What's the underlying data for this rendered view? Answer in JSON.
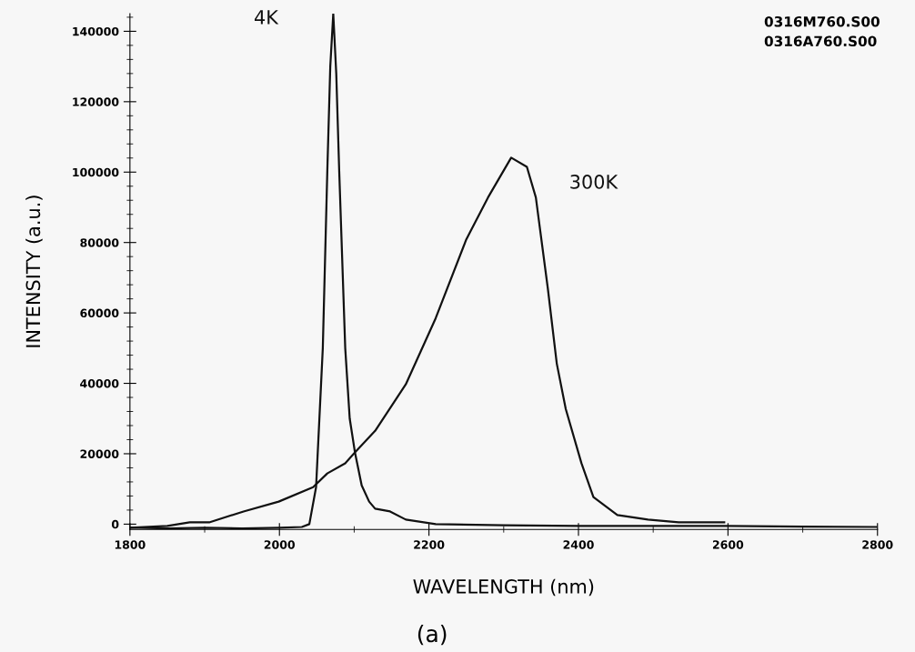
{
  "chart_data": {
    "type": "line",
    "xlabel": "WAVELENGTH (nm)",
    "ylabel": "INTENSITY (a.u.)",
    "annotations": [
      "0316M760.S00",
      "0316A760.S00",
      "(a)"
    ],
    "xlim": [
      1800,
      2800
    ],
    "xticks": [
      1800,
      2000,
      2200,
      2400,
      2600,
      2800
    ],
    "ylim": [
      -1500,
      145000
    ],
    "yticks": [
      0,
      20000,
      40000,
      60000,
      80000,
      100000,
      120000,
      140000
    ],
    "grid": false,
    "legend": false,
    "marker": "none",
    "line_style": "solid",
    "series": [
      {
        "name": "4K",
        "color": "#111111",
        "x": [
          1800,
          1850,
          1900,
          1950,
          2000,
          2030,
          2040,
          2049,
          2058,
          2064,
          2068,
          2072,
          2076,
          2080,
          2088,
          2094,
          2101,
          2110,
          2120,
          2128,
          2148,
          2169,
          2209,
          2300,
          2400,
          2500,
          2600,
          2700,
          2800
        ],
        "values": [
          -1000,
          -1200,
          -1000,
          -1200,
          -1000,
          -800,
          0,
          10500,
          50000,
          100000,
          130000,
          145000,
          128000,
          100000,
          50000,
          30000,
          20400,
          11000,
          6400,
          4400,
          3600,
          1300,
          0,
          -300,
          -500,
          -500,
          -500,
          -700,
          -800
        ]
      },
      {
        "name": "300K",
        "color": "#111111",
        "x": [
          1800,
          1850,
          1880,
          1906,
          1952,
          1999,
          2045,
          2064,
          2088,
          2101,
          2128,
          2169,
          2209,
          2250,
          2279,
          2310,
          2331,
          2343,
          2359,
          2371,
          2383,
          2404,
          2420,
          2452,
          2493,
          2534,
          2595
        ],
        "values": [
          -1000,
          -500,
          500,
          500,
          3600,
          6400,
          10500,
          14400,
          17300,
          20400,
          26500,
          39700,
          58500,
          80900,
          92800,
          104100,
          101500,
          92800,
          67000,
          45600,
          32700,
          17300,
          7700,
          2600,
          1300,
          500,
          500
        ]
      }
    ]
  }
}
